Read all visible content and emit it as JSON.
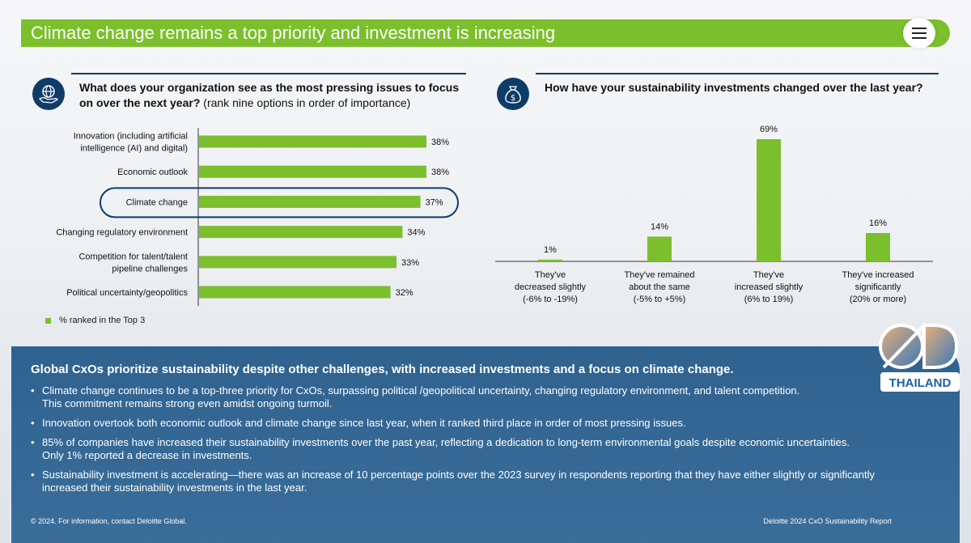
{
  "header": {
    "title": "Climate change remains a top priority and investment is increasing"
  },
  "left_question": {
    "bold": "What does your organization see as the most pressing issues to focus on over the next year?",
    "normal": " (rank nine options in order of importance)"
  },
  "right_question": {
    "bold": "How have your sustainability investments changed over the last year?"
  },
  "legend": {
    "label": "% ranked in the Top 3"
  },
  "icons": {
    "left": "globe-hand-icon",
    "right": "money-bag-icon",
    "menu": "hamburger-menu-icon"
  },
  "colors": {
    "bar": "#7cbf2c",
    "navy": "#0f3b68",
    "panel": "#2f628f"
  },
  "chart_data": [
    {
      "type": "bar",
      "orientation": "horizontal",
      "categories": [
        "Innovation (including artificial intelligence (AI) and digital)",
        "Economic outlook",
        "Climate change",
        "Changing regulatory environment",
        "Competition for talent/talent pipeline challenges",
        "Political uncertainty/geopolitics"
      ],
      "category_lines": [
        [
          "Innovation (including artificial",
          "intelligence (AI) and digital)"
        ],
        [
          "Economic outlook"
        ],
        [
          "Climate change"
        ],
        [
          "Changing regulatory environment"
        ],
        [
          "Competition for talent/talent",
          "pipeline challenges"
        ],
        [
          "Political uncertainty/geopolitics"
        ]
      ],
      "values": [
        38,
        38,
        37,
        34,
        33,
        32
      ],
      "value_labels": [
        "38%",
        "38%",
        "37%",
        "34%",
        "33%",
        "32%"
      ],
      "highlighted": "Climate change",
      "series": [
        {
          "name": "% ranked in the Top 3",
          "values": [
            38,
            38,
            37,
            34,
            33,
            32
          ]
        }
      ]
    },
    {
      "type": "bar",
      "orientation": "vertical",
      "categories": [
        "They've decreased slightly (-6% to -19%)",
        "They've remained about the same (-5% to +5%)",
        "They've increased slightly (6% to 19%)",
        "They've increased significantly (20% or more)"
      ],
      "category_lines": [
        [
          "They've",
          "decreased slightly",
          "(-6% to -19%)"
        ],
        [
          "They've remained",
          "about the same",
          "(-5% to +5%)"
        ],
        [
          "They've",
          "increased slightly",
          "(6% to 19%)"
        ],
        [
          "They've increased",
          "significantly",
          "(20% or more)"
        ]
      ],
      "values": [
        1,
        14,
        69,
        16
      ],
      "value_labels": [
        "1%",
        "14%",
        "69%",
        "16%"
      ]
    }
  ],
  "summary": {
    "heading": "Global CxOs prioritize sustainability despite other challenges, with increased investments and a focus on climate change.",
    "bullets": [
      [
        "Climate change continues to be a top-three priority for CxOs, surpassing political /geopolitical uncertainty, changing regulatory environment, and talent competition.",
        "This commitment remains strong even amidst ongoing turmoil."
      ],
      [
        "Innovation overtook both economic outlook and climate change since last year, when it ranked third place in order of most pressing issues."
      ],
      [
        "85% of companies have increased their sustainability investments over the past year, reflecting a dedication to long-term environmental goals despite economic uncertainties.",
        "Only 1% reported a decrease in investments."
      ],
      [
        "Sustainability investment is accelerating—there was an increase of 10 percentage points over the 2023 survey in respondents reporting that they have either slightly or significantly",
        "increased their sustainability investments in the last year."
      ]
    ]
  },
  "footer": {
    "left": "© 2024. For information, contact Deloitte Global.",
    "right": "Deloitte 2024 CxO Sustainability Report"
  },
  "logo": {
    "text": "THAILAND"
  }
}
